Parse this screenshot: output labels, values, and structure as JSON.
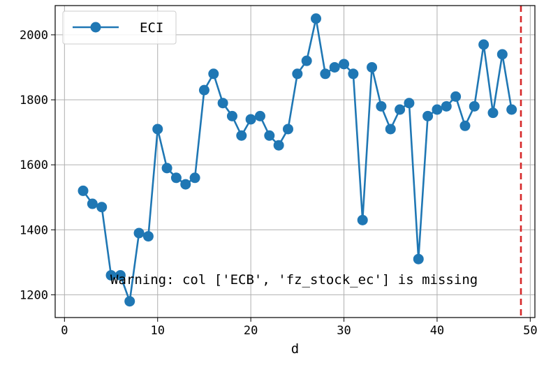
{
  "chart_data": {
    "type": "line",
    "title": "",
    "xlabel": "d",
    "ylabel": "",
    "xlim": [
      -1,
      50.5
    ],
    "ylim": [
      1130,
      2090
    ],
    "xticks": [
      0,
      10,
      20,
      30,
      40,
      50
    ],
    "yticks": [
      1200,
      1400,
      1600,
      1800,
      2000
    ],
    "grid": true,
    "legend": {
      "placement": "top-left"
    },
    "series": [
      {
        "name": "ECI",
        "color": "#1f77b4",
        "marker": "circle",
        "x": [
          2,
          3,
          4,
          5,
          6,
          7,
          8,
          9,
          10,
          11,
          12,
          13,
          14,
          15,
          16,
          17,
          18,
          19,
          20,
          21,
          22,
          23,
          24,
          25,
          26,
          27,
          28,
          29,
          30,
          31,
          32,
          33,
          34,
          35,
          36,
          37,
          38,
          39,
          40,
          41,
          42,
          43,
          44,
          45,
          46,
          47,
          48
        ],
        "y": [
          1520,
          1480,
          1470,
          1260,
          1260,
          1180,
          1390,
          1380,
          1710,
          1590,
          1560,
          1540,
          1560,
          1830,
          1880,
          1790,
          1750,
          1690,
          1740,
          1750,
          1690,
          1660,
          1710,
          1880,
          1920,
          2050,
          1880,
          1900,
          1910,
          1880,
          1430,
          1900,
          1780,
          1710,
          1770,
          1790,
          1310,
          1750,
          1770,
          1780,
          1810,
          1720,
          1780,
          1970,
          1760,
          1940,
          1770
        ]
      }
    ],
    "reference_line": {
      "x": 49,
      "color": "#d62728",
      "style": "dashed"
    },
    "annotation": "Warning: col ['ECB', 'fz_stock_ec'] is missing"
  }
}
